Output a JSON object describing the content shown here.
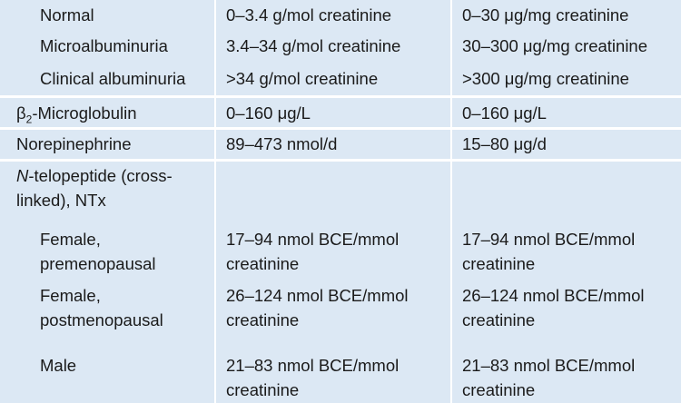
{
  "table": {
    "rows": [
      [
        "Normal",
        "0–3.4 g/mol creatinine",
        "0–30 μg/mg creatinine"
      ],
      [
        "Microalbuminuria",
        "3.4–34 g/mol creatinine",
        "30–300 μg/mg creatinine"
      ],
      [
        "Clinical albuminuria",
        ">34 g/mol creatinine",
        ">300 μg/mg creatinine"
      ],
      [
        {
          "symbol": "β",
          "subscript": "2",
          "text": "-Microglobulin"
        },
        "0–160 μg/L",
        "0–160 μg/L"
      ],
      [
        "Norepinephrine",
        "89–473 nmol/d",
        "15–80 μg/d"
      ],
      [
        {
          "italic": "N",
          "text": "-telopeptide (cross-linked), NTx"
        }
      ],
      [
        "Female, premenopausal",
        "17–94 nmol BCE/mmol creatinine",
        "17–94 nmol BCE/mmol creatinine"
      ],
      [
        "Female, postmenopausal",
        "26–124 nmol BCE/mmol creatinine",
        "26–124 nmol BCE/mmol creatinine"
      ],
      [
        "Male",
        "21–83 nmol BCE/mmol creatinine",
        "21–83 nmol BCE/mmol creatinine"
      ]
    ]
  }
}
